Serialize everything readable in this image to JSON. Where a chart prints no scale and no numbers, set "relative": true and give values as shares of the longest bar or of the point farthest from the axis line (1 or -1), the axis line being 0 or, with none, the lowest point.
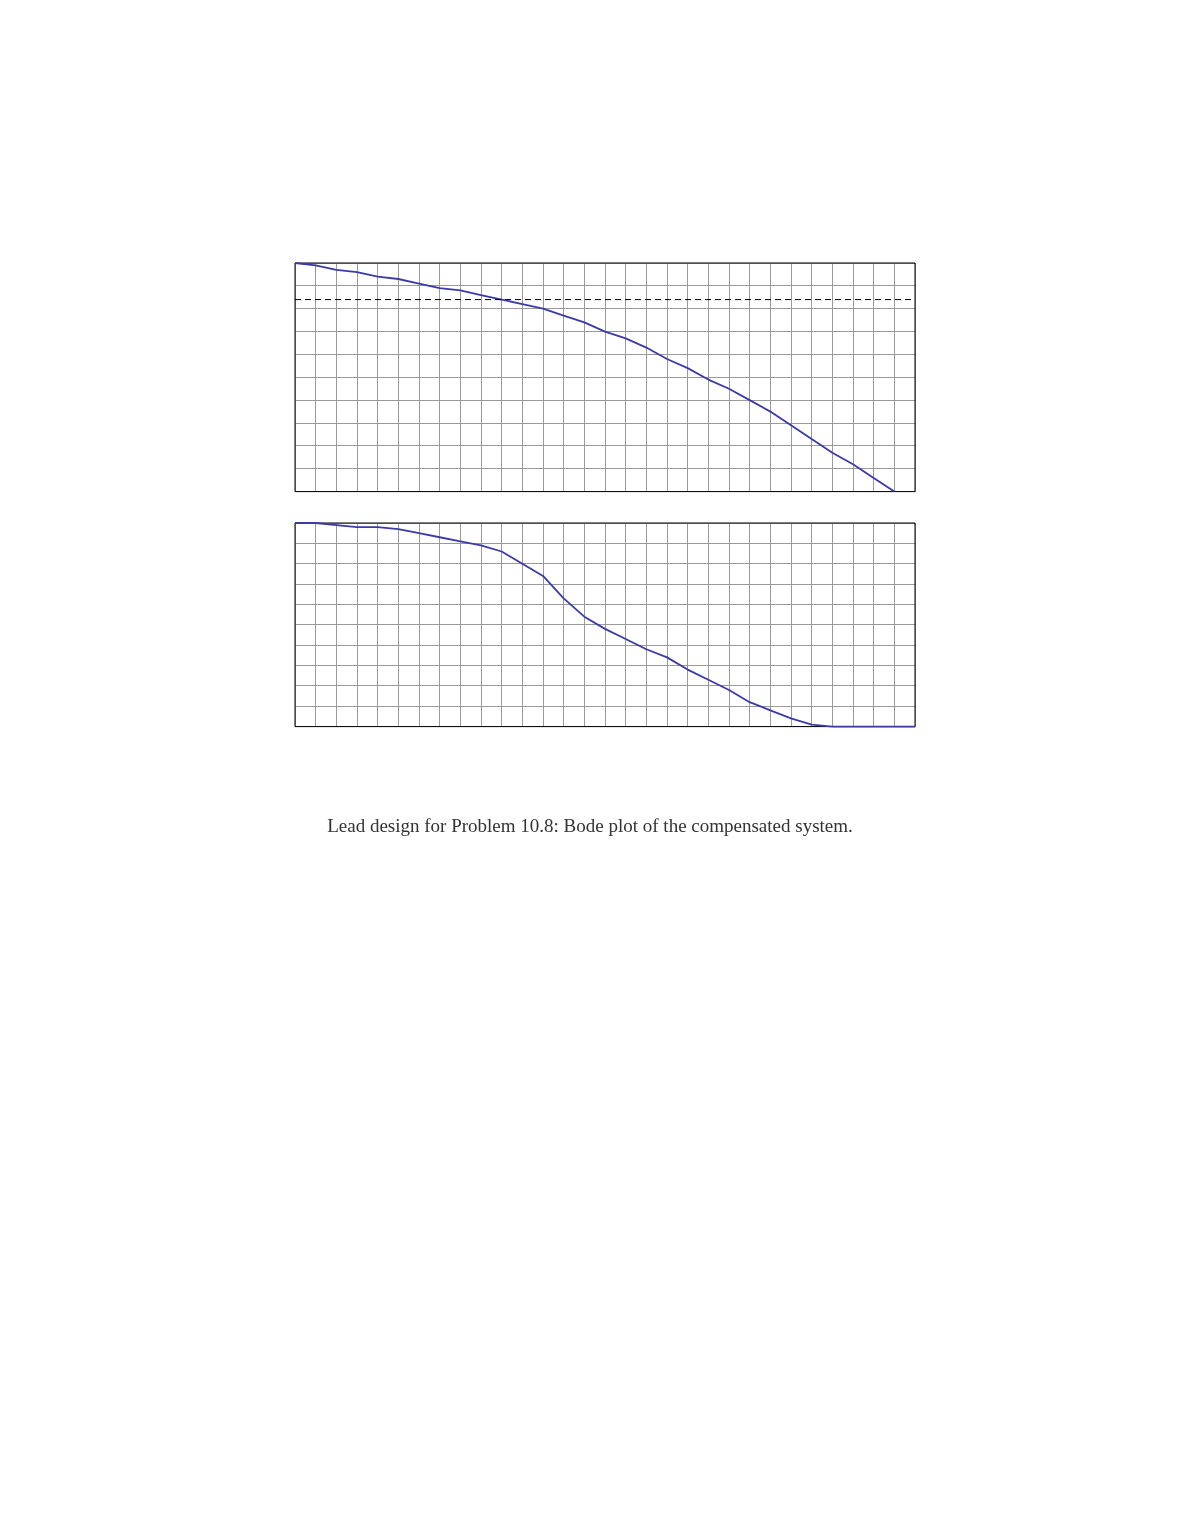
{
  "chart_data": [
    {
      "type": "line",
      "relative": true,
      "grid": true,
      "legend": false,
      "marker": "none",
      "line_style": "solid",
      "categories": [
        null,
        null,
        null,
        null,
        null,
        null,
        null,
        null,
        null,
        null,
        null,
        null,
        null,
        null,
        null,
        null,
        null,
        null,
        null,
        null,
        null,
        null,
        null,
        null,
        null,
        null,
        null,
        null,
        null,
        null,
        null
      ],
      "series": [
        {
          "color": "#3b3ba8",
          "values": [
            1.0,
            0.99,
            0.97,
            0.96,
            0.94,
            0.93,
            0.91,
            0.89,
            0.88,
            0.86,
            0.84,
            0.82,
            0.8,
            0.77,
            0.74,
            0.7,
            0.67,
            0.63,
            0.58,
            0.54,
            0.49,
            0.45,
            0.4,
            0.35,
            0.29,
            0.23,
            0.17,
            0.12,
            0.06,
            0,
            null
          ]
        }
      ],
      "ref_lines": [
        {
          "axis": "y",
          "value": 0.84,
          "color": "#000000",
          "line_style": "dashed"
        }
      ]
    },
    {
      "type": "line",
      "relative": true,
      "grid": true,
      "legend": false,
      "marker": "none",
      "line_style": "solid",
      "categories": [
        null,
        null,
        null,
        null,
        null,
        null,
        null,
        null,
        null,
        null,
        null,
        null,
        null,
        null,
        null,
        null,
        null,
        null,
        null,
        null,
        null,
        null,
        null,
        null,
        null,
        null,
        null,
        null,
        null,
        null,
        null
      ],
      "series": [
        {
          "color": "#3b3ba8",
          "values": [
            1.0,
            1.0,
            0.99,
            0.98,
            0.98,
            0.97,
            0.95,
            0.93,
            0.91,
            0.89,
            0.86,
            0.8,
            0.74,
            0.63,
            0.54,
            0.48,
            0.43,
            0.38,
            0.34,
            0.28,
            0.23,
            0.18,
            0.12,
            0.08,
            0.04,
            0.01,
            0,
            0,
            0,
            0,
            0
          ]
        }
      ],
      "annotations": [
        "Lead design for Problem 10.8: Bode plot of the compensated system."
      ]
    }
  ]
}
